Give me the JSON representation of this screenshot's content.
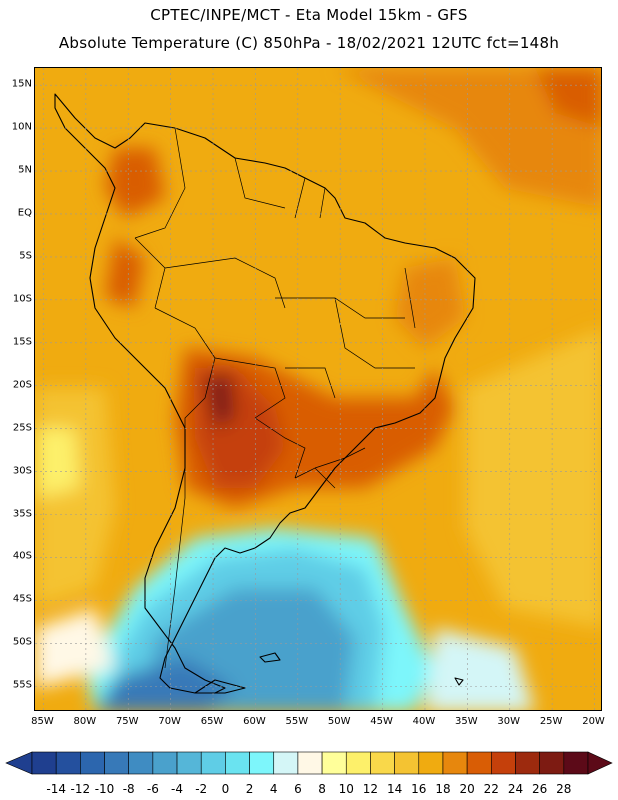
{
  "header": {
    "title": "CPTEC/INPE/MCT -  Eta Model 15km - GFS",
    "subtitle": "Absolute Temperature (C) 850hPa - 18/02/2021 12UTC fct=148h"
  },
  "map": {
    "lon_range": [
      -86,
      -19
    ],
    "lat_range": [
      -58,
      17
    ],
    "lat_ticks": [
      {
        "value": 15,
        "label": "15N"
      },
      {
        "value": 10,
        "label": "10N"
      },
      {
        "value": 5,
        "label": "5N"
      },
      {
        "value": 0,
        "label": "EQ"
      },
      {
        "value": -5,
        "label": "5S"
      },
      {
        "value": -10,
        "label": "10S"
      },
      {
        "value": -15,
        "label": "15S"
      },
      {
        "value": -20,
        "label": "20S"
      },
      {
        "value": -25,
        "label": "25S"
      },
      {
        "value": -30,
        "label": "30S"
      },
      {
        "value": -35,
        "label": "35S"
      },
      {
        "value": -40,
        "label": "40S"
      },
      {
        "value": -45,
        "label": "45S"
      },
      {
        "value": -50,
        "label": "50S"
      },
      {
        "value": -55,
        "label": "55S"
      }
    ],
    "lon_ticks": [
      {
        "value": -85,
        "label": "85W"
      },
      {
        "value": -80,
        "label": "80W"
      },
      {
        "value": -75,
        "label": "75W"
      },
      {
        "value": -70,
        "label": "70W"
      },
      {
        "value": -65,
        "label": "65W"
      },
      {
        "value": -60,
        "label": "60W"
      },
      {
        "value": -55,
        "label": "55W"
      },
      {
        "value": -50,
        "label": "50W"
      },
      {
        "value": -45,
        "label": "45W"
      },
      {
        "value": -40,
        "label": "40W"
      },
      {
        "value": -35,
        "label": "35W"
      },
      {
        "value": -30,
        "label": "30W"
      },
      {
        "value": -25,
        "label": "25W"
      },
      {
        "value": -20,
        "label": "20W"
      }
    ],
    "grid": true
  },
  "colorbar": {
    "labels": [
      "-14",
      "-12",
      "-10",
      "-8",
      "-6",
      "-4",
      "-2",
      "0",
      "2",
      "4",
      "6",
      "8",
      "10",
      "12",
      "14",
      "16",
      "18",
      "20",
      "22",
      "24",
      "26",
      "28"
    ],
    "colors": [
      "#1f3f8f",
      "#24509e",
      "#2c66ae",
      "#3779b8",
      "#3f8cc2",
      "#4aa1cc",
      "#55b6d8",
      "#5fcde6",
      "#6ae3f0",
      "#7df6fb",
      "#d4f6f7",
      "#fff8e6",
      "#ffff9a",
      "#fdf06a",
      "#f9d84a",
      "#f4c332",
      "#f0ab10",
      "#e7870d",
      "#d95d05",
      "#c5400b",
      "#9d2a0e",
      "#7d1b12",
      "#5c0a18"
    ]
  }
}
